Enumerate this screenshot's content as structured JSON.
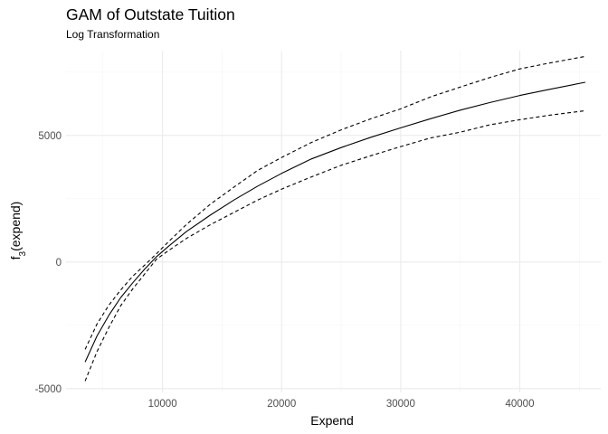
{
  "chart_data": {
    "type": "line",
    "title": "GAM of Outstate Tuition",
    "subtitle": "Log Transformation",
    "xlabel": "Expend",
    "ylabel_base": "f",
    "ylabel_subscript": "3",
    "ylabel_suffix": "(expend)",
    "xlim": [
      1900,
      46800
    ],
    "ylim": [
      -5150,
      8350
    ],
    "x_ticks": [
      10000,
      20000,
      30000,
      40000
    ],
    "x_tick_labels": [
      "10000",
      "20000",
      "30000",
      "40000"
    ],
    "x_minor_ticks": [
      5000,
      15000,
      25000,
      35000,
      45000
    ],
    "y_ticks": [
      -5000,
      0,
      5000
    ],
    "y_tick_labels": [
      "-5000",
      "0",
      "5000"
    ],
    "y_minor_ticks": [
      -2500,
      2500,
      7500
    ],
    "grid": true,
    "legend": "none",
    "x": [
      3500,
      4500,
      5500,
      6500,
      7500,
      8500,
      9500,
      10500,
      12000,
      14000,
      16000,
      18000,
      20000,
      22500,
      25000,
      27500,
      30000,
      32500,
      35000,
      37500,
      40000,
      42500,
      45500
    ],
    "series": [
      {
        "style": "solid",
        "values": [
          -3950,
          -2920,
          -2100,
          -1400,
          -820,
          -280,
          210,
          620,
          1200,
          1850,
          2450,
          3000,
          3500,
          4070,
          4520,
          4930,
          5300,
          5660,
          6000,
          6300,
          6580,
          6820,
          7100
        ]
      },
      {
        "style": "dashed",
        "values": [
          -3450,
          -2450,
          -1700,
          -1100,
          -560,
          -120,
          330,
          800,
          1480,
          2280,
          2960,
          3620,
          4130,
          4720,
          5220,
          5660,
          6050,
          6520,
          6910,
          7290,
          7630,
          7860,
          8120
        ]
      },
      {
        "style": "dashed",
        "values": [
          -4700,
          -3540,
          -2580,
          -1720,
          -1060,
          -470,
          110,
          450,
          930,
          1470,
          1960,
          2450,
          2880,
          3360,
          3820,
          4200,
          4560,
          4900,
          5130,
          5420,
          5620,
          5800,
          5980
        ]
      }
    ],
    "colors": {
      "line": "#000000",
      "grid_major": "#ebebeb",
      "grid_minor": "#f5f5f5",
      "tick_text": "#4d4d4d"
    }
  }
}
